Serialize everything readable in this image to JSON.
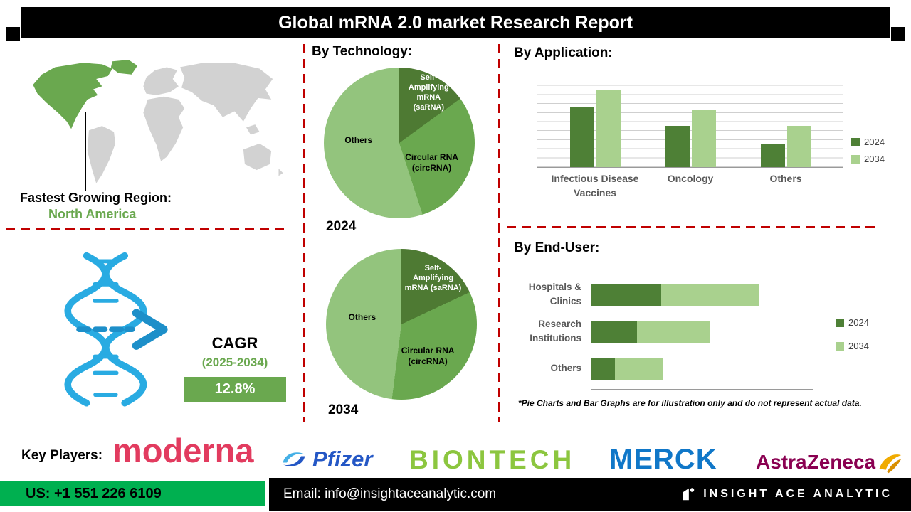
{
  "theme": {
    "green": "#6aa84f",
    "red": "#c00000",
    "footer-green": "#00b050",
    "map-gray": "#d2d2d2",
    "dna-blue": "#29abe2",
    "dna-teal": "#1d8fc9",
    "moderna": "#e23b5f",
    "pfizer": "#2457c5",
    "pfizer-light": "#45b0e6",
    "biontech": "#8cc63f",
    "merck": "#1077c8",
    "astrazeneca": "#8a0051",
    "astrazeneca-gold": "#f0ab00"
  },
  "header": {
    "title": "Global mRNA 2.0 market Research Report"
  },
  "region": {
    "label": "Fastest Growing Region:",
    "value": "North America"
  },
  "cagr": {
    "label": "CAGR",
    "period": "(2025-2034)",
    "value": "12.8%"
  },
  "sections": {
    "technology": "By Technology:",
    "application": "By Application:",
    "end_user": "By End-User:",
    "key_players": "Key Players:"
  },
  "chart_data": [
    {
      "id": "tech-pie-2024",
      "type": "pie",
      "title": "2024",
      "labels": [
        "Self-Amplifying mRNA (saRNA)",
        "Circular RNA (circRNA)",
        "Others"
      ],
      "values": [
        15,
        30,
        55
      ],
      "colors": [
        "#4e7a33",
        "#6aa84f",
        "#93c47d"
      ],
      "legend_position": "none"
    },
    {
      "id": "tech-pie-2034",
      "type": "pie",
      "title": "2034",
      "labels": [
        "Self-Amplifying mRNA (saRNA)",
        "Circular RNA (circRNA)",
        "Others"
      ],
      "values": [
        18,
        34,
        48
      ],
      "colors": [
        "#4e7a33",
        "#6aa84f",
        "#93c47d"
      ],
      "legend_position": "none"
    },
    {
      "id": "application-bars",
      "type": "bar",
      "title": "By Application:",
      "categories": [
        "Infectious Disease Vaccines",
        "Oncology",
        "Others"
      ],
      "series": [
        {
          "name": "2024",
          "color": "#4e8036",
          "values": [
            66,
            46,
            26
          ]
        },
        {
          "name": "2034",
          "color": "#a9d18e",
          "values": [
            86,
            64,
            46
          ]
        }
      ],
      "ylim": [
        0,
        100
      ],
      "grid": true,
      "legend_position": "right"
    },
    {
      "id": "enduser-bars",
      "type": "stacked-horizontal-bar",
      "title": "By End-User:",
      "categories": [
        "Hospitals & Clinics",
        "Research Institutions",
        "Others"
      ],
      "series": [
        {
          "name": "2024",
          "color": "#4e8036",
          "values": [
            32,
            21,
            11
          ]
        },
        {
          "name": "2034",
          "color": "#a9d18e",
          "values": [
            44,
            33,
            22
          ]
        }
      ],
      "xlim": [
        0,
        100
      ],
      "grid": false,
      "legend_position": "right"
    }
  ],
  "footnote": "*Pie Charts and Bar Graphs are for illustration only and do not represent actual data.",
  "key_players": [
    "moderna",
    "Pfizer",
    "BIONTECH",
    "MERCK",
    "AstraZeneca"
  ],
  "footer": {
    "phone": "US: +1 551 226 6109",
    "email": "Email: info@insightaceanalytic.com",
    "brand": "INSIGHT ACE ANALYTIC"
  }
}
